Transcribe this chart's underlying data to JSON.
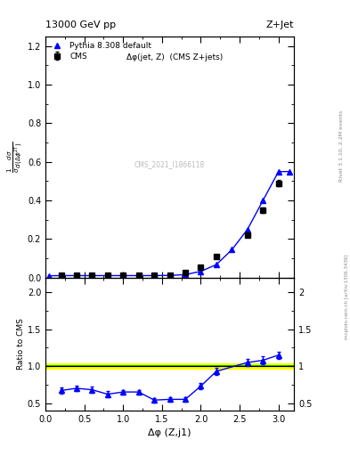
{
  "title_left": "13000 GeV pp",
  "title_right": "Z+Jet",
  "annotation": "Δφ(jet, Z)  (CMS Z+jets)",
  "cms_label": "CMS_2021_I1866118",
  "right_label": "Rivet 3.1.10, 2.2M events",
  "arxiv_label": "mcplots.cern.ch [arXiv:1306.3436]",
  "xlabel": "Δφ (Z,j1)",
  "ylabel_ratio": "Ratio to CMS",
  "cms_x": [
    0.2,
    0.4,
    0.6,
    0.8,
    1.0,
    1.2,
    1.4,
    1.6,
    1.8,
    2.0,
    2.2,
    2.6,
    2.8,
    3.0
  ],
  "cms_y": [
    0.012,
    0.013,
    0.013,
    0.013,
    0.013,
    0.013,
    0.014,
    0.015,
    0.025,
    0.055,
    0.11,
    0.22,
    0.35,
    0.49
  ],
  "cms_yerr": [
    0.001,
    0.001,
    0.001,
    0.001,
    0.001,
    0.001,
    0.001,
    0.001,
    0.002,
    0.003,
    0.005,
    0.008,
    0.012,
    0.015
  ],
  "mc_x": [
    0.05,
    0.2,
    0.4,
    0.6,
    0.8,
    1.0,
    1.2,
    1.4,
    1.6,
    1.8,
    2.0,
    2.2,
    2.4,
    2.6,
    2.8,
    3.0,
    3.14
  ],
  "mc_y": [
    0.01,
    0.011,
    0.011,
    0.011,
    0.011,
    0.011,
    0.011,
    0.011,
    0.012,
    0.016,
    0.033,
    0.068,
    0.145,
    0.25,
    0.4,
    0.55,
    0.55
  ],
  "ratio_x": [
    0.2,
    0.4,
    0.6,
    0.8,
    1.0,
    1.2,
    1.4,
    1.6,
    1.8,
    2.0,
    2.2,
    2.6,
    2.8,
    3.0
  ],
  "ratio_y": [
    0.67,
    0.7,
    0.68,
    0.62,
    0.65,
    0.65,
    0.54,
    0.55,
    0.55,
    0.73,
    0.93,
    1.05,
    1.08,
    1.15
  ],
  "ratio_yerr": [
    0.04,
    0.04,
    0.04,
    0.04,
    0.03,
    0.03,
    0.03,
    0.03,
    0.03,
    0.04,
    0.05,
    0.05,
    0.05,
    0.05
  ],
  "xlim": [
    0.0,
    3.2
  ],
  "ylim_main": [
    0.0,
    1.25
  ],
  "ylim_ratio": [
    0.4,
    2.2
  ],
  "yticks_main": [
    0.0,
    0.2,
    0.4,
    0.6,
    0.8,
    1.0,
    1.2
  ],
  "yticks_ratio_left": [
    0.5,
    1.0,
    1.5,
    2.0
  ],
  "yticks_ratio_right": [
    0.5,
    1.0,
    1.5,
    2.0
  ],
  "cms_color": "black",
  "mc_color": "blue",
  "band_color_yellow": "#ffff00",
  "band_color_green": "#00bb00",
  "background_color": "white"
}
